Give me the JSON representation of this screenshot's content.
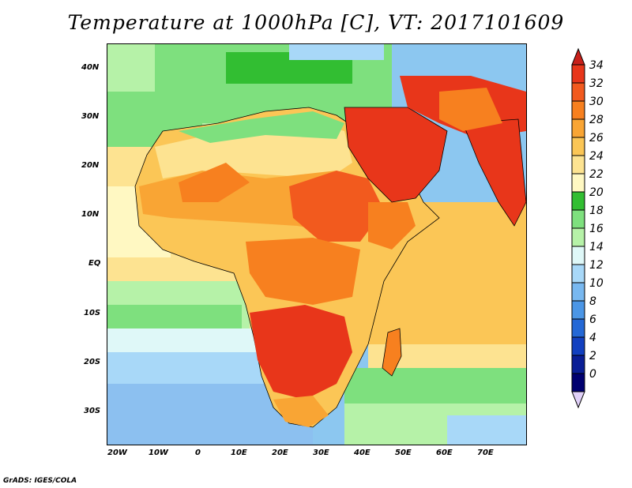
{
  "title": "Temperature at 1000hPa [C], VT: 2017101609",
  "credit": "GrADS: IGES/COLA",
  "map": {
    "projection": "lat-lon",
    "lon_range": [
      -22,
      80
    ],
    "lat_range": [
      -37,
      45
    ],
    "variable": "temperature",
    "units": "C",
    "lat_ticks": [
      {
        "value": 40,
        "label": "40N"
      },
      {
        "value": 30,
        "label": "30N"
      },
      {
        "value": 20,
        "label": "20N"
      },
      {
        "value": 10,
        "label": "10N"
      },
      {
        "value": 0,
        "label": "EQ"
      },
      {
        "value": -10,
        "label": "10S"
      },
      {
        "value": -20,
        "label": "20S"
      },
      {
        "value": -30,
        "label": "30S"
      }
    ],
    "lon_ticks": [
      {
        "value": -20,
        "label": "20W"
      },
      {
        "value": -10,
        "label": "10W"
      },
      {
        "value": 0,
        "label": "0"
      },
      {
        "value": 10,
        "label": "10E"
      },
      {
        "value": 20,
        "label": "20E"
      },
      {
        "value": 30,
        "label": "30E"
      },
      {
        "value": 40,
        "label": "40E"
      },
      {
        "value": 50,
        "label": "50E"
      },
      {
        "value": 60,
        "label": "60E"
      },
      {
        "value": 70,
        "label": "70E"
      }
    ]
  },
  "colorbar": {
    "levels": [
      "34",
      "32",
      "30",
      "28",
      "26",
      "24",
      "22",
      "20",
      "18",
      "16",
      "14",
      "12",
      "10",
      "8",
      "6",
      "4",
      "2",
      "0"
    ],
    "colors": [
      "#e8361a",
      "#f25a1e",
      "#f7801f",
      "#f9a534",
      "#fbc656",
      "#fde391",
      "#fff8c2",
      "#32be32",
      "#7ee07e",
      "#b6f2a8",
      "#dff8f8",
      "#a8d8f8",
      "#78b8f0",
      "#4b96e6",
      "#2468d6",
      "#1240c0",
      "#0a1e96",
      "#000070"
    ],
    "top_arrow_color": "#c8201a",
    "bottom_arrow_color": "#e0d0f8"
  }
}
